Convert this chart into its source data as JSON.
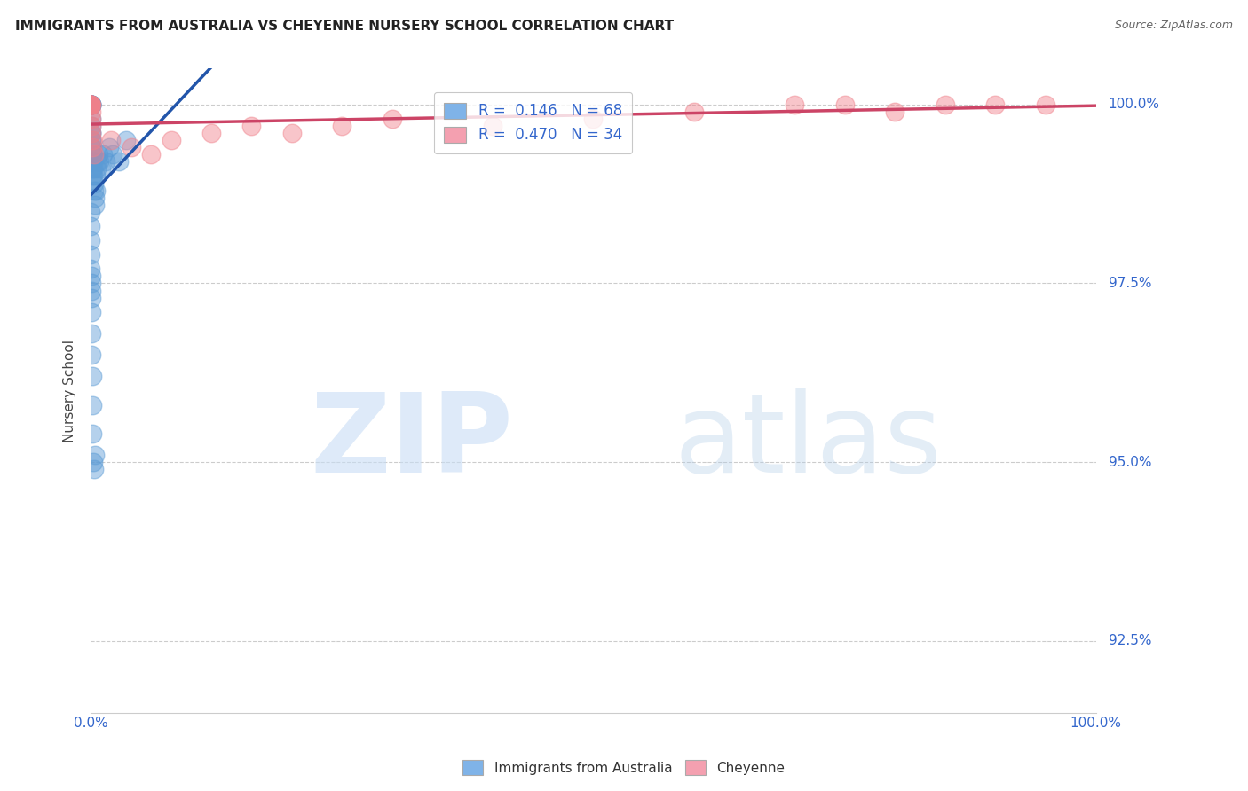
{
  "title": "IMMIGRANTS FROM AUSTRALIA VS CHEYENNE NURSERY SCHOOL CORRELATION CHART",
  "source": "Source: ZipAtlas.com",
  "ylabel": "Nursery School",
  "legend_blue_label": "R =  0.146   N = 68",
  "legend_pink_label": "R =  0.470   N = 34",
  "legend_blue_color": "#7fb3e8",
  "legend_pink_color": "#f4a0b0",
  "blue_color": "#5b9bd5",
  "pink_color": "#f0808a",
  "blue_line_color": "#2255aa",
  "pink_line_color": "#cc4466",
  "background_color": "#ffffff",
  "ytick_values": [
    100.0,
    97.5,
    95.0,
    92.5
  ],
  "blue_scatter_x": [
    0.0,
    0.0,
    0.0,
    0.0,
    0.0,
    0.0,
    0.0,
    0.0,
    0.0,
    0.0,
    0.02,
    0.02,
    0.03,
    0.03,
    0.04,
    0.04,
    0.05,
    0.05,
    0.06,
    0.07,
    0.08,
    0.09,
    0.1,
    0.1,
    0.12,
    0.13,
    0.15,
    0.15,
    0.18,
    0.2,
    0.22,
    0.25,
    0.28,
    0.3,
    0.35,
    0.4,
    0.45,
    0.5,
    0.55,
    0.6,
    0.7,
    0.8,
    0.9,
    1.0,
    1.2,
    1.5,
    1.8,
    2.2,
    2.8,
    3.5,
    0.0,
    0.01,
    0.01,
    0.02,
    0.02,
    0.03,
    0.04,
    0.05,
    0.06,
    0.07,
    0.08,
    0.1,
    0.12,
    0.15,
    0.2,
    0.25,
    0.3,
    0.4
  ],
  "blue_scatter_y": [
    100.0,
    100.0,
    100.0,
    100.0,
    100.0,
    100.0,
    100.0,
    100.0,
    100.0,
    100.0,
    100.0,
    100.0,
    100.0,
    100.0,
    100.0,
    100.0,
    100.0,
    99.8,
    99.7,
    99.6,
    99.5,
    99.4,
    99.5,
    99.6,
    99.3,
    99.4,
    99.3,
    99.2,
    99.1,
    99.0,
    99.2,
    99.1,
    99.0,
    98.9,
    98.8,
    98.7,
    98.6,
    98.8,
    99.0,
    99.1,
    99.2,
    99.3,
    99.2,
    99.1,
    99.3,
    99.2,
    99.4,
    99.3,
    99.2,
    99.5,
    98.5,
    98.3,
    98.1,
    97.9,
    97.7,
    97.5,
    97.3,
    97.1,
    97.4,
    97.6,
    96.8,
    96.5,
    96.2,
    95.8,
    95.4,
    95.0,
    94.9,
    95.1
  ],
  "pink_scatter_x": [
    0.0,
    0.0,
    0.0,
    0.0,
    0.0,
    0.01,
    0.01,
    0.02,
    0.03,
    0.04,
    0.05,
    0.08,
    0.1,
    0.15,
    0.2,
    0.3,
    2.0,
    4.0,
    6.0,
    8.0,
    12.0,
    16.0,
    20.0,
    25.0,
    30.0,
    40.0,
    50.0,
    60.0,
    70.0,
    75.0,
    80.0,
    85.0,
    90.0,
    95.0
  ],
  "pink_scatter_y": [
    100.0,
    100.0,
    100.0,
    100.0,
    100.0,
    100.0,
    100.0,
    100.0,
    100.0,
    99.9,
    99.8,
    99.7,
    99.6,
    99.5,
    99.4,
    99.3,
    99.5,
    99.4,
    99.3,
    99.5,
    99.6,
    99.7,
    99.6,
    99.7,
    99.8,
    99.7,
    99.8,
    99.9,
    100.0,
    100.0,
    99.9,
    100.0,
    100.0,
    100.0
  ],
  "xlim_pct": [
    0.0,
    100.0
  ],
  "ylim": [
    91.5,
    100.5
  ]
}
